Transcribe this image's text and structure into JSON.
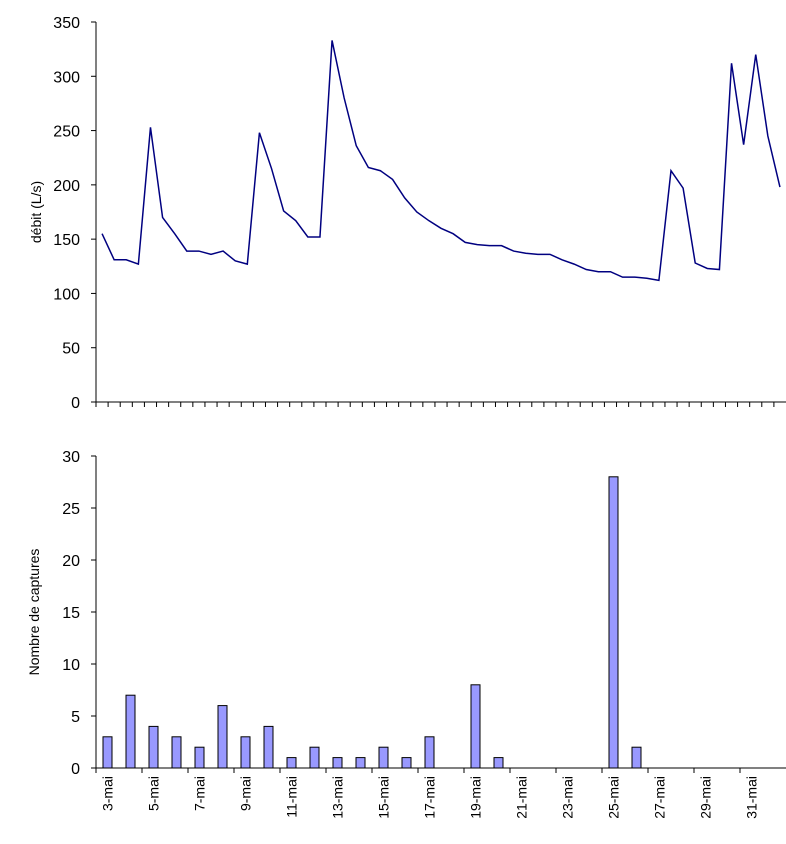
{
  "chart_data": [
    {
      "type": "line",
      "y_label": "débit (L/s)",
      "color": "#000080",
      "values": [
        155,
        131,
        131,
        127,
        253,
        170,
        155,
        139,
        139,
        136,
        139,
        130,
        127,
        248,
        215,
        176,
        167,
        152,
        152,
        333,
        280,
        236,
        216,
        213,
        205,
        188,
        175,
        167,
        160,
        155,
        147,
        145,
        144,
        144,
        139,
        137,
        136,
        136,
        131,
        127,
        122,
        120,
        120,
        115,
        115,
        114,
        112,
        213,
        197,
        128,
        123,
        122,
        312,
        237,
        320,
        245,
        198
      ],
      "ylim": [
        0,
        350
      ],
      "yticks": [
        0,
        50,
        100,
        150,
        200,
        250,
        300,
        350
      ]
    },
    {
      "type": "bar",
      "y_label": "Nombre de captures",
      "color": "#9999ff",
      "categories": [
        "3-mai",
        null,
        "5-mai",
        null,
        "7-mai",
        null,
        "9-mai",
        null,
        "11-mai",
        null,
        "13-mai",
        null,
        "15-mai",
        null,
        "17-mai",
        null,
        "19-mai",
        null,
        "21-mai",
        null,
        "23-mai",
        null,
        "25-mai",
        null,
        "27-mai",
        null,
        "29-mai",
        null,
        "31-mai",
        null
      ],
      "values": [
        3,
        7,
        4,
        3,
        2,
        6,
        3,
        4,
        1,
        2,
        1,
        1,
        2,
        1,
        3,
        0,
        8,
        1,
        0,
        0,
        0,
        0,
        28,
        2,
        0,
        0,
        0,
        0,
        0,
        0
      ],
      "ylim": [
        0,
        30
      ],
      "yticks": [
        0,
        5,
        10,
        15,
        20,
        25,
        30
      ]
    }
  ]
}
